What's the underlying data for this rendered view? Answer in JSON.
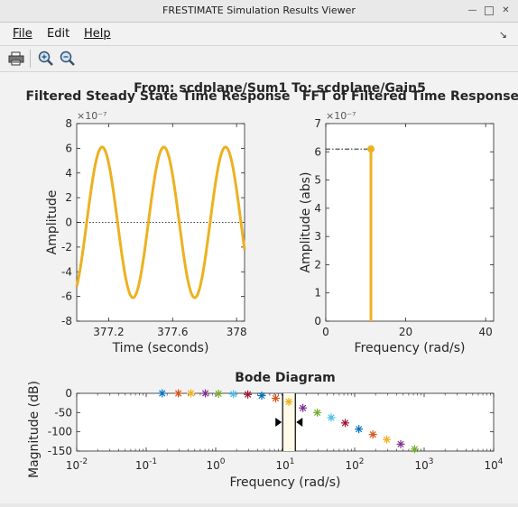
{
  "window": {
    "title": "FRESTIMATE Simulation Results Viewer"
  },
  "menu": {
    "file": "File",
    "edit": "Edit",
    "help": "Help"
  },
  "toolbar": {
    "print": "printer-icon",
    "zoom_in": "zoom-in-icon",
    "zoom_out": "zoom-out-icon"
  },
  "figure": {
    "suptitle": "From: scdplane/Sum1  To: scdplane/Gain5"
  },
  "chart_data": [
    {
      "type": "line",
      "title": "Filtered Steady State Time Response",
      "xlabel": "Time (seconds)",
      "ylabel": "Amplitude",
      "exponent": "×10⁻⁷",
      "xlim": [
        377.0,
        378.05
      ],
      "ylim": [
        -8,
        8
      ],
      "xticks": [
        377.2,
        377.6,
        378
      ],
      "xtick_labels": [
        "377.2",
        "377.6",
        "378"
      ],
      "yticks": [
        -8,
        -6,
        -4,
        -2,
        0,
        2,
        4,
        6,
        8
      ],
      "ytick_labels": [
        "-8",
        "-6",
        "-4",
        "-2",
        "0",
        "2",
        "4",
        "6",
        "8"
      ],
      "series": [
        {
          "amplitude": 6.1,
          "period": 0.386,
          "peak_time": 377.545,
          "t_start": 377.0,
          "t_end": 378.05,
          "color": "#edb120"
        }
      ],
      "zero_line": true
    },
    {
      "type": "stem",
      "title": "FFT of Filtered Time Response",
      "xlabel": "Frequency (rad/s)",
      "ylabel": "Amplitude (abs)",
      "exponent": "×10⁻⁷",
      "xlim": [
        0,
        42
      ],
      "ylim": [
        0,
        7
      ],
      "xticks": [
        0,
        20,
        40
      ],
      "xtick_labels": [
        "0",
        "20",
        "40"
      ],
      "yticks": [
        0,
        1,
        2,
        3,
        4,
        5,
        6,
        7
      ],
      "ytick_labels": [
        "0",
        "1",
        "2",
        "3",
        "4",
        "5",
        "6",
        "7"
      ],
      "points": [
        {
          "x": 11.3,
          "y": 6.1
        }
      ],
      "color": "#edb120"
    },
    {
      "type": "scatter",
      "title": "Bode Diagram",
      "xlabel": "Frequency  (rad/s)",
      "ylabel": "Magnitude (dB)",
      "xscale": "log",
      "xlim": [
        0.01,
        10000
      ],
      "ylim": [
        -150,
        0
      ],
      "xtick_exps": [
        -2,
        -1,
        0,
        1,
        2,
        3,
        4
      ],
      "yticks": [
        0,
        -50,
        -100,
        -150
      ],
      "ytick_labels": [
        "0",
        "-50",
        "-100",
        "-150"
      ],
      "points": [
        {
          "x": 0.17,
          "y": 0,
          "color": "#0072bd"
        },
        {
          "x": 0.29,
          "y": 0,
          "color": "#d95319"
        },
        {
          "x": 0.44,
          "y": 0,
          "color": "#edb120"
        },
        {
          "x": 0.71,
          "y": 0,
          "color": "#7e2f8e"
        },
        {
          "x": 1.1,
          "y": -1,
          "color": "#77ac30"
        },
        {
          "x": 1.8,
          "y": -2,
          "color": "#4dbeee"
        },
        {
          "x": 2.9,
          "y": -3,
          "color": "#a2142f"
        },
        {
          "x": 4.6,
          "y": -6,
          "color": "#0072bd"
        },
        {
          "x": 7.3,
          "y": -13,
          "color": "#d95319"
        },
        {
          "x": 11.3,
          "y": -22,
          "color": "#edb120"
        },
        {
          "x": 18,
          "y": -38,
          "color": "#7e2f8e"
        },
        {
          "x": 29,
          "y": -50,
          "color": "#77ac30"
        },
        {
          "x": 46,
          "y": -63,
          "color": "#4dbeee"
        },
        {
          "x": 73,
          "y": -77,
          "color": "#a2142f"
        },
        {
          "x": 115,
          "y": -93,
          "color": "#0072bd"
        },
        {
          "x": 183,
          "y": -107,
          "color": "#d95319"
        },
        {
          "x": 290,
          "y": -120,
          "color": "#edb120"
        },
        {
          "x": 460,
          "y": -132,
          "color": "#7e2f8e"
        },
        {
          "x": 730,
          "y": -145,
          "color": "#77ac30"
        }
      ],
      "selection": {
        "x_low": 9.2,
        "x_high": 14.0
      }
    }
  ]
}
